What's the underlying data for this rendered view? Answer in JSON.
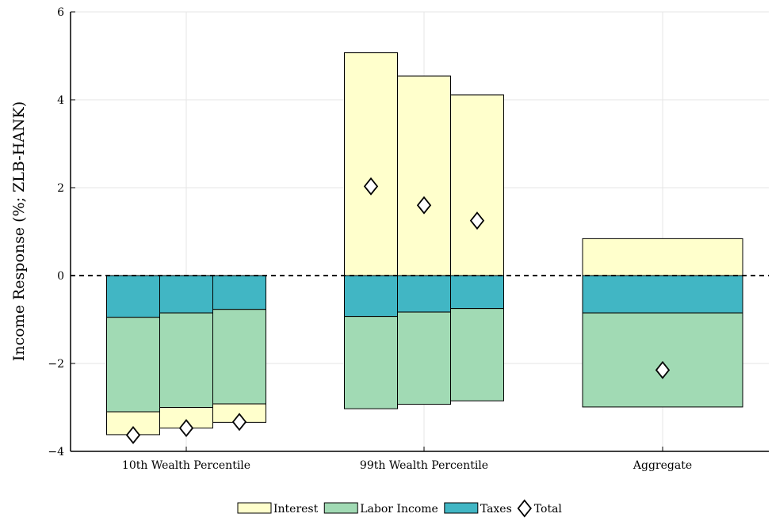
{
  "chart_data": {
    "type": "bar",
    "subtype": "stacked-grouped",
    "title": "",
    "xlabel": "",
    "ylabel": "Income Response (%; ZLB-HANK)",
    "ylim": [
      -4,
      6
    ],
    "yticks": [
      -4,
      -2,
      0,
      2,
      4,
      6
    ],
    "ytick_labels": [
      "−4",
      "−2",
      "0",
      "2",
      "4",
      "6"
    ],
    "grid": true,
    "zero_line": "dashed",
    "legend_position": "bottom-center",
    "categories": [
      "10th Wealth Percentile",
      "99th Wealth Percentile",
      "Aggregate"
    ],
    "colors": {
      "Interest": "#ffffcc",
      "Labor Income": "#a1dab4",
      "Taxes": "#41b6c4",
      "Total": "#ffffff"
    },
    "groups": [
      {
        "category": "10th Wealth Percentile",
        "bars": [
          {
            "Taxes": -0.95,
            "Labor Income": -2.15,
            "Interest": -0.52,
            "Total": -3.63
          },
          {
            "Taxes": -0.85,
            "Labor Income": -2.15,
            "Interest": -0.47,
            "Total": -3.47
          },
          {
            "Taxes": -0.77,
            "Labor Income": -2.15,
            "Interest": -0.42,
            "Total": -3.33
          }
        ]
      },
      {
        "category": "99th Wealth Percentile",
        "bars": [
          {
            "Taxes": -0.93,
            "Labor Income": -2.1,
            "Interest": 5.07,
            "Total": 2.03
          },
          {
            "Taxes": -0.83,
            "Labor Income": -2.1,
            "Interest": 4.54,
            "Total": 1.6
          },
          {
            "Taxes": -0.75,
            "Labor Income": -2.1,
            "Interest": 4.11,
            "Total": 1.25
          }
        ]
      },
      {
        "category": "Aggregate",
        "bars": [
          {
            "Taxes": -0.85,
            "Labor Income": -2.14,
            "Interest": 0.84,
            "Total": -2.15
          }
        ]
      }
    ],
    "legend": [
      {
        "label": "Interest",
        "marker": "box",
        "color": "#ffffcc"
      },
      {
        "label": "Labor Income",
        "marker": "box",
        "color": "#a1dab4"
      },
      {
        "label": "Taxes",
        "marker": "box",
        "color": "#41b6c4"
      },
      {
        "label": "Total",
        "marker": "diamond",
        "color": "#ffffff"
      }
    ]
  }
}
